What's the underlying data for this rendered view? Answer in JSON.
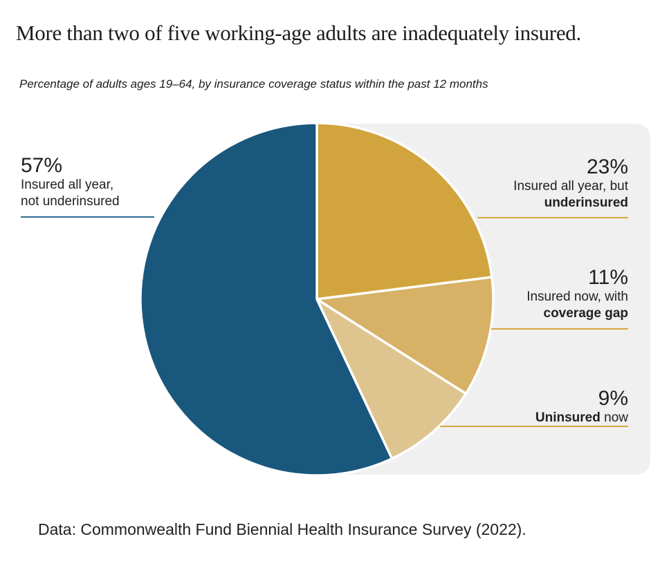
{
  "page": {
    "title": "More than two of five working-age adults are inadequately insured.",
    "subtitle": "Percentage of adults ages 19–64, by insurance coverage status within the past 12 months",
    "footer": "Data: Commonwealth Fund Biennial Health Insurance Survey (2022)."
  },
  "chart_data": {
    "type": "pie",
    "title": "More than two of five working-age adults are inadequately insured.",
    "subtitle": "Percentage of adults ages 19–64, by insurance coverage status within the past 12 months",
    "start_angle_deg": 0,
    "direction": "clockwise",
    "legend_position": "callouts",
    "slices": [
      {
        "label": "Insured all year, but underinsured",
        "value": 23,
        "color": "#d2a43e"
      },
      {
        "label": "Insured now, with coverage gap",
        "value": 11,
        "color": "#d6b166"
      },
      {
        "label": "Uninsured now",
        "value": 9,
        "color": "#dec590"
      },
      {
        "label": "Insured all year, not underinsured",
        "value": 57,
        "color": "#1a577c"
      }
    ]
  },
  "callouts": {
    "left_57": {
      "pct": "57%",
      "line1": "Insured all year,",
      "line2": "not underinsured"
    },
    "right_23": {
      "pct": "23%",
      "line1": "Insured all year, but",
      "line2_bold": "underinsured"
    },
    "right_11": {
      "pct": "11%",
      "line1": "Insured now, with",
      "line2_bold": "coverage gap"
    },
    "right_9": {
      "pct": "9%",
      "line2_bold": "Uninsured",
      "line2_after": " now"
    }
  },
  "colors": {
    "leader_gold": "#d4a63c",
    "leader_blue": "#2a6a94",
    "panel_background": "#f0f0f0"
  }
}
